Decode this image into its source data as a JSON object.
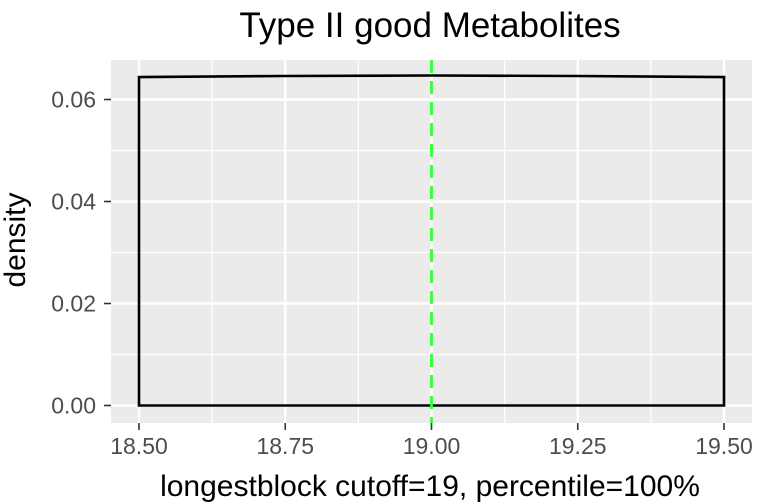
{
  "chart_data": {
    "type": "area",
    "title": "Type II good Metabolites",
    "xlabel": "longestblock cutoff=19, percentile=100%",
    "ylabel": "density",
    "xlim": [
      18.5,
      19.5
    ],
    "ylim": [
      0,
      0.065
    ],
    "x_ticks": [
      18.5,
      18.75,
      19.0,
      19.25,
      19.5
    ],
    "x_tick_labels": [
      "18.50",
      "18.75",
      "19.00",
      "19.25",
      "19.50"
    ],
    "y_ticks": [
      0,
      0.02,
      0.04,
      0.06
    ],
    "y_tick_labels": [
      "0.00",
      "0.02",
      "0.04",
      "0.06"
    ],
    "grid": true,
    "background_color": "#ebebeb",
    "grid_color": "#ffffff",
    "density_curve": {
      "x": [
        18.5,
        18.5,
        18.75,
        19.0,
        19.25,
        19.5,
        19.5
      ],
      "y": [
        0,
        0.0644,
        0.0646,
        0.0647,
        0.0646,
        0.0644,
        0
      ],
      "color": "#000000"
    },
    "cutoff_line": {
      "x": 19.0,
      "style": "dashed",
      "color": "#33ff33"
    }
  }
}
